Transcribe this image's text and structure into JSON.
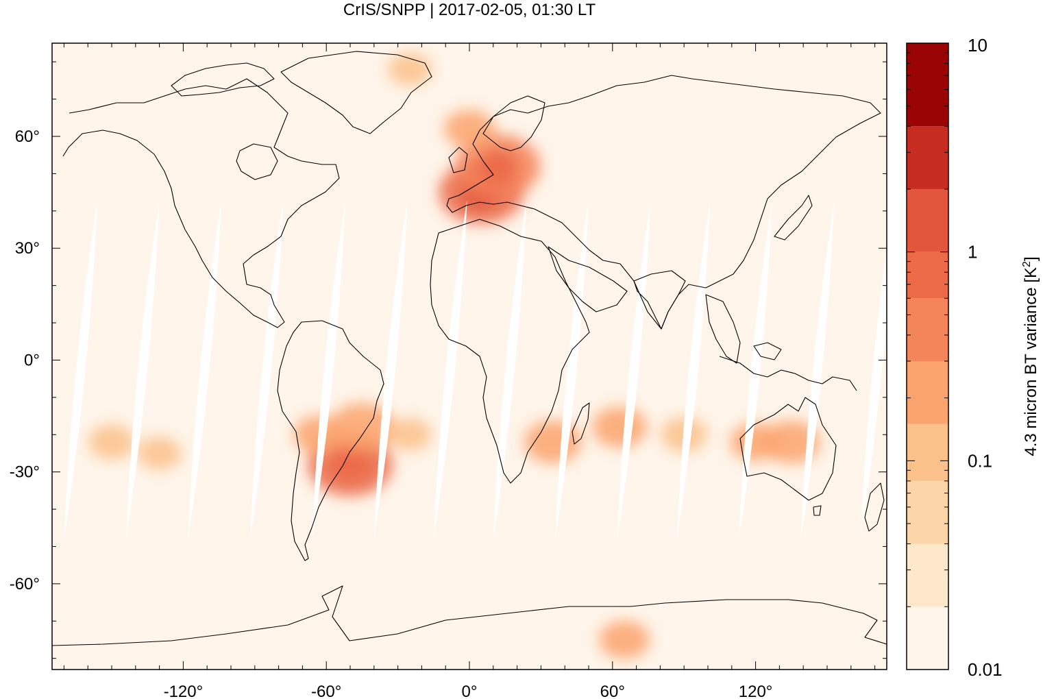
{
  "title": "CrIS/SNPP | 2017-02-05, 01:30 LT",
  "map": {
    "projection": "equirectangular",
    "lon_range": [
      -175,
      175
    ],
    "lat_range": [
      -83,
      85
    ],
    "lon_ticks": [
      {
        "value": -120,
        "label": "-120°"
      },
      {
        "value": -60,
        "label": "-60°"
      },
      {
        "value": 0,
        "label": "0°"
      },
      {
        "value": 60,
        "label": "60°"
      },
      {
        "value": 120,
        "label": "120°"
      }
    ],
    "lat_ticks": [
      {
        "value": 60,
        "label": "60°"
      },
      {
        "value": 30,
        "label": "30°"
      },
      {
        "value": 0,
        "label": "0°"
      },
      {
        "value": -30,
        "label": "-30°"
      },
      {
        "value": -60,
        "label": "-60°"
      }
    ],
    "background_color": "#fff5ea",
    "coastline_color": "#000000",
    "gap_color": "#ffffff",
    "swath_gaps": [
      {
        "center_lon": -163,
        "width_deg": 5
      },
      {
        "center_lon": -137,
        "width_deg": 5
      },
      {
        "center_lon": -111,
        "width_deg": 5
      },
      {
        "center_lon": -85,
        "width_deg": 5
      },
      {
        "center_lon": -59,
        "width_deg": 5
      },
      {
        "center_lon": -33,
        "width_deg": 5
      },
      {
        "center_lon": -8,
        "width_deg": 5
      },
      {
        "center_lon": 17,
        "width_deg": 5
      },
      {
        "center_lon": 43,
        "width_deg": 5
      },
      {
        "center_lon": 69,
        "width_deg": 5
      },
      {
        "center_lon": 94,
        "width_deg": 5
      },
      {
        "center_lon": 120,
        "width_deg": 5
      },
      {
        "center_lon": 146,
        "width_deg": 5
      },
      {
        "center_lon": 171,
        "width_deg": 5
      }
    ],
    "variance_patches": [
      {
        "region": "Western Europe",
        "lon": 5,
        "lat": 45,
        "value": 0.9
      },
      {
        "region": "Central Europe",
        "lon": 12,
        "lat": 52,
        "value": 0.5
      },
      {
        "region": "Scandinavia / North Atlantic",
        "lon": 0,
        "lat": 62,
        "value": 0.15
      },
      {
        "region": "Greenland Sea",
        "lon": -25,
        "lat": 78,
        "value": 0.1
      },
      {
        "region": "Southern Brazil",
        "lon": -50,
        "lat": -28,
        "value": 0.6
      },
      {
        "region": "Central Brazil",
        "lon": -45,
        "lat": -18,
        "value": 0.25
      },
      {
        "region": "Bolivia / Andes",
        "lon": -63,
        "lat": -20,
        "value": 0.15
      },
      {
        "region": "Southeast Africa",
        "lon": 35,
        "lat": -22,
        "value": 0.2
      },
      {
        "region": "South Indian Ocean",
        "lon": 63,
        "lat": -18,
        "value": 0.18
      },
      {
        "region": "Indian Ocean 90E",
        "lon": 90,
        "lat": -20,
        "value": 0.12
      },
      {
        "region": "Australia",
        "lon": 135,
        "lat": -22,
        "value": 0.2
      },
      {
        "region": "Western Australia coast",
        "lon": 120,
        "lat": -22,
        "value": 0.15
      },
      {
        "region": "South Pacific 160W",
        "lon": -150,
        "lat": -22,
        "value": 0.12
      },
      {
        "region": "South Pacific 130W",
        "lon": -130,
        "lat": -25,
        "value": 0.1
      },
      {
        "region": "South Atlantic",
        "lon": -25,
        "lat": -20,
        "value": 0.1
      },
      {
        "region": "Antarctica coast 65E",
        "lon": 65,
        "lat": -75,
        "value": 0.15
      }
    ]
  },
  "colorbar": {
    "label_main": "4.3 micron BT variance [K",
    "label_sup": "2",
    "label_end": "]",
    "scale": "log",
    "min": 0.01,
    "max": 10,
    "ticks": [
      {
        "value": 0.01,
        "label": "0.01"
      },
      {
        "value": 0.1,
        "label": "0.1"
      },
      {
        "value": 1,
        "label": "1"
      },
      {
        "value": 10,
        "label": "10"
      }
    ],
    "bins": [
      {
        "from": 0.01,
        "to": 0.02,
        "color": "#fff5ea"
      },
      {
        "from": 0.02,
        "to": 0.04,
        "color": "#fde8cc"
      },
      {
        "from": 0.04,
        "to": 0.08,
        "color": "#fcd5a9"
      },
      {
        "from": 0.08,
        "to": 0.15,
        "color": "#fbc18a"
      },
      {
        "from": 0.15,
        "to": 0.3,
        "color": "#fba36c"
      },
      {
        "from": 0.3,
        "to": 0.6,
        "color": "#f4845a"
      },
      {
        "from": 0.6,
        "to": 1.0,
        "color": "#ec6a48"
      },
      {
        "from": 1.0,
        "to": 2.0,
        "color": "#e2563e"
      },
      {
        "from": 2.0,
        "to": 4.0,
        "color": "#c72c21"
      },
      {
        "from": 4.0,
        "to": 10.0,
        "color": "#9b0404"
      }
    ]
  }
}
